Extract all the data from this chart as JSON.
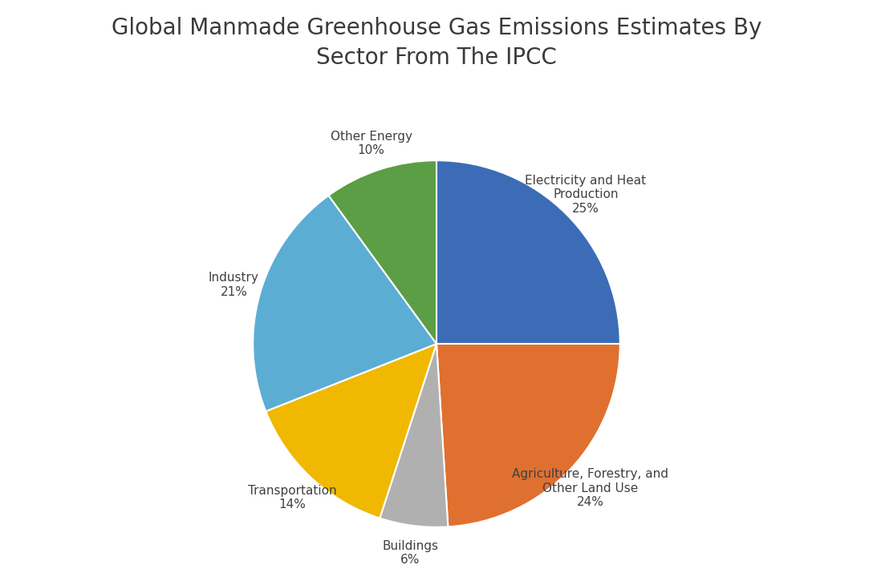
{
  "title": "Global Manmade Greenhouse Gas Emissions Estimates By\nSector From The IPCC",
  "title_fontsize": 20,
  "sectors": [
    "Electricity and Heat\nProduction\n25%",
    "Agriculture, Forestry, and\nOther Land Use\n24%",
    "Buildings\n6%",
    "Transportation\n14%",
    "Industry\n21%",
    "Other Energy\n10%"
  ],
  "values": [
    25,
    24,
    6,
    14,
    21,
    10
  ],
  "colors": [
    "#3B6CB5",
    "#E07030",
    "#B0B0B0",
    "#F0B800",
    "#5BADD4",
    "#5B9E45"
  ],
  "startangle": 90,
  "background_color": "#FFFFFF",
  "label_fontsize": 11,
  "label_color": "#404040"
}
